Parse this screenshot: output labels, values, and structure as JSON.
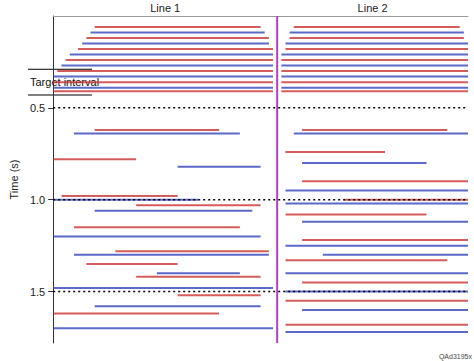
{
  "chart_data": {
    "type": "seismic",
    "panels": [
      {
        "title": "Line 1",
        "xlim": [
          0,
          54
        ]
      },
      {
        "title": "Line 2",
        "xlim": [
          54,
          100
        ]
      }
    ],
    "divider": 54,
    "divider_color": "#b040c0",
    "y_label": "Time (s)",
    "xlim": [
      0,
      100
    ],
    "ylim": [
      0,
      1.78
    ],
    "yticks": [
      {
        "value": 0.5,
        "label": "0.5"
      },
      {
        "value": 1,
        "label": "1.0"
      },
      {
        "value": 1.5,
        "label": "1.5"
      }
    ],
    "tick_labels": "y",
    "grid": true,
    "annotation": {
      "text": "Target interval",
      "range": [
        0.29,
        0.43
      ]
    },
    "figure_id": "QAd3195x",
    "series": [
      {
        "color": "#cc3333",
        "segments": [
          [
            0.06,
            10,
            50
          ],
          [
            0.12,
            8,
            52
          ],
          [
            0.18,
            6,
            53
          ],
          [
            0.24,
            3,
            53
          ],
          [
            0.3,
            1,
            53
          ],
          [
            0.36,
            0,
            53
          ],
          [
            0.41,
            0,
            53
          ],
          [
            0.06,
            58,
            98
          ],
          [
            0.12,
            57,
            99
          ],
          [
            0.18,
            56,
            100
          ],
          [
            0.24,
            55,
            100
          ],
          [
            0.3,
            55,
            100
          ],
          [
            0.36,
            55,
            100
          ],
          [
            0.41,
            55,
            100
          ],
          [
            0.62,
            10,
            40
          ],
          [
            0.78,
            0,
            20
          ],
          [
            0.98,
            2,
            30
          ],
          [
            1.03,
            20,
            50
          ],
          [
            1.15,
            5,
            45
          ],
          [
            1.28,
            15,
            52
          ],
          [
            1.35,
            8,
            30
          ],
          [
            1.42,
            20,
            50
          ],
          [
            1.52,
            30,
            50
          ],
          [
            1.62,
            0,
            40
          ],
          [
            0.62,
            60,
            95
          ],
          [
            0.74,
            56,
            80
          ],
          [
            0.9,
            60,
            100
          ],
          [
            1.0,
            70,
            100
          ],
          [
            1.08,
            56,
            90
          ],
          [
            1.22,
            60,
            100
          ],
          [
            1.33,
            56,
            95
          ],
          [
            1.45,
            60,
            100
          ],
          [
            1.55,
            56,
            100
          ],
          [
            1.68,
            56,
            100
          ]
        ]
      },
      {
        "color": "#3344bb",
        "segments": [
          [
            0.09,
            9,
            51
          ],
          [
            0.15,
            7,
            52
          ],
          [
            0.21,
            4,
            53
          ],
          [
            0.27,
            2,
            53
          ],
          [
            0.33,
            0,
            53
          ],
          [
            0.39,
            0,
            53
          ],
          [
            0.09,
            57,
            99
          ],
          [
            0.15,
            56,
            100
          ],
          [
            0.21,
            55,
            100
          ],
          [
            0.27,
            55,
            100
          ],
          [
            0.33,
            55,
            100
          ],
          [
            0.39,
            55,
            100
          ],
          [
            0.64,
            5,
            45
          ],
          [
            0.82,
            30,
            50
          ],
          [
            1.0,
            0,
            35
          ],
          [
            1.06,
            10,
            48
          ],
          [
            1.2,
            0,
            50
          ],
          [
            1.3,
            5,
            52
          ],
          [
            1.4,
            25,
            45
          ],
          [
            1.48,
            0,
            53
          ],
          [
            1.58,
            10,
            50
          ],
          [
            1.7,
            0,
            53
          ],
          [
            0.64,
            58,
            100
          ],
          [
            0.8,
            60,
            90
          ],
          [
            0.95,
            56,
            100
          ],
          [
            1.02,
            56,
            100
          ],
          [
            1.12,
            60,
            100
          ],
          [
            1.25,
            56,
            100
          ],
          [
            1.3,
            65,
            100
          ],
          [
            1.4,
            56,
            100
          ],
          [
            1.5,
            56,
            100
          ],
          [
            1.6,
            60,
            100
          ],
          [
            1.72,
            56,
            100
          ]
        ]
      }
    ]
  }
}
